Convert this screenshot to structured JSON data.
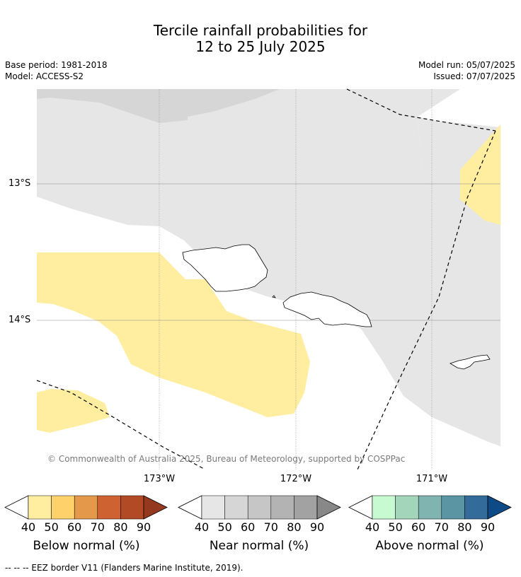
{
  "title": {
    "line1": "Tercile rainfall probabilities for",
    "line2": "12 to 25 July 2025"
  },
  "meta": {
    "base_period": "Base period: 1981-2018",
    "model": "Model: ACCESS-S2",
    "model_run": "Model run: 05/07/2025",
    "issued": "Issued: 07/07/2025"
  },
  "map": {
    "lat_labels": [
      "13°S",
      "14°S"
    ],
    "lon_labels": [
      "173°W",
      "172°W",
      "171°W"
    ],
    "copyright": "© Commonwealth of Australia 2025, Bureau of Meteorology, supported by COSPPac"
  },
  "colorbars": [
    {
      "label": "Below normal (%)",
      "ticks": [
        "40",
        "50",
        "60",
        "70",
        "80",
        "90"
      ],
      "colors": [
        "#ffeda0",
        "#fed16a",
        "#e3984a",
        "#cf6231",
        "#b34a26",
        "#953820"
      ]
    },
    {
      "label": "Near normal (%)",
      "ticks": [
        "40",
        "50",
        "60",
        "70",
        "80",
        "90"
      ],
      "colors": [
        "#e6e6e6",
        "#d6d6d6",
        "#c6c6c6",
        "#b3b3b3",
        "#a2a2a2",
        "#888888"
      ]
    },
    {
      "label": "Above normal (%)",
      "ticks": [
        "40",
        "50",
        "60",
        "70",
        "80",
        "90"
      ],
      "colors": [
        "#c7fad0",
        "#a3d5ba",
        "#7fb4b1",
        "#5b94a3",
        "#336b9a",
        "#0d4a86"
      ]
    }
  ],
  "footer": "--  --  -- EEZ border V11 (Flanders Marine Institute, 2019)."
}
